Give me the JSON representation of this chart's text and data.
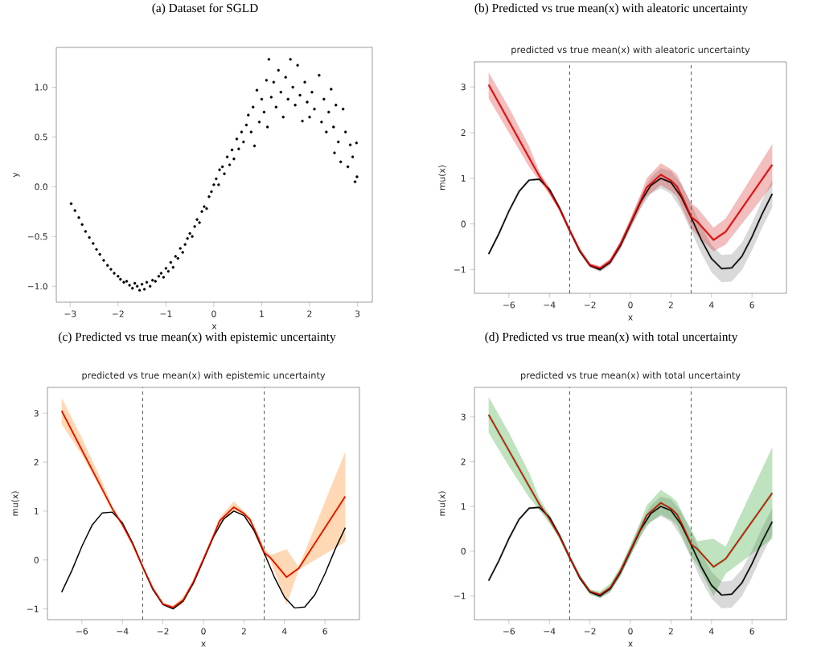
{
  "chart_data": [
    {
      "type": "scatter",
      "title": "(a) Dataset for SGLD",
      "xlabel": "x",
      "ylabel": "y",
      "marker": "circle",
      "xlim": [
        -3.29,
        3.31
      ],
      "ylim": [
        -1.16,
        1.4
      ],
      "xticks": [
        {
          "value": -3,
          "label": "−3"
        },
        {
          "value": -2,
          "label": "−2"
        },
        {
          "value": -1,
          "label": "−1"
        },
        0,
        1,
        2,
        3
      ],
      "yticks": [
        {
          "value": -1,
          "label": "−1.0"
        },
        {
          "value": -0.5,
          "label": "−0.5"
        },
        {
          "value": 0,
          "label": "0.0"
        },
        0.5,
        {
          "value": 1,
          "label": "1.0"
        }
      ],
      "series": [
        {
          "color": "#000000",
          "x": [
            -2.98,
            -2.9,
            -2.82,
            -2.75,
            -2.68,
            -2.6,
            -2.52,
            -2.45,
            -2.38,
            -2.3,
            -2.22,
            -2.15,
            -2.08,
            -2.0,
            -1.95,
            -1.88,
            -1.82,
            -1.76,
            -1.7,
            -1.65,
            -1.6,
            -1.55,
            -1.5,
            -1.45,
            -1.4,
            -1.33,
            -1.28,
            -1.22,
            -1.15,
            -1.1,
            -1.05,
            -1.0,
            -0.95,
            -0.9,
            -0.85,
            -0.8,
            -0.75,
            -0.7,
            -0.65,
            -0.6,
            -0.55,
            -0.5,
            -0.45,
            -0.4,
            -0.35,
            -0.3,
            -0.25,
            -0.2,
            -0.15,
            -0.1,
            -0.05,
            0.0,
            0.05,
            0.1,
            0.12,
            0.18,
            0.22,
            0.28,
            0.33,
            0.38,
            0.42,
            0.48,
            0.52,
            0.58,
            0.62,
            0.68,
            0.72,
            0.78,
            0.82,
            0.85,
            0.9,
            0.95,
            1.0,
            1.05,
            1.1,
            1.12,
            1.15,
            1.2,
            1.25,
            1.3,
            1.35,
            1.4,
            1.45,
            1.5,
            1.55,
            1.6,
            1.65,
            1.7,
            1.75,
            1.8,
            1.85,
            1.9,
            1.95,
            2.0,
            2.05,
            2.1,
            2.2,
            2.25,
            2.3,
            2.35,
            2.4,
            2.45,
            2.5,
            2.52,
            2.55,
            2.6,
            2.65,
            2.7,
            2.75,
            2.8,
            2.85,
            2.9,
            2.95,
            2.98,
            2.99
          ],
          "values": [
            -0.17,
            -0.24,
            -0.31,
            -0.38,
            -0.45,
            -0.51,
            -0.57,
            -0.63,
            -0.68,
            -0.74,
            -0.79,
            -0.83,
            -0.87,
            -0.9,
            -0.93,
            -0.96,
            -0.95,
            -0.99,
            -1.02,
            -0.97,
            -1.0,
            -1.04,
            -0.98,
            -1.03,
            -0.96,
            -1.0,
            -0.94,
            -0.95,
            -0.9,
            -0.87,
            -0.91,
            -0.82,
            -0.85,
            -0.76,
            -0.81,
            -0.7,
            -0.72,
            -0.62,
            -0.66,
            -0.58,
            -0.52,
            -0.47,
            -0.5,
            -0.4,
            -0.33,
            -0.36,
            -0.25,
            -0.2,
            -0.22,
            -0.1,
            -0.05,
            0.02,
            0.08,
            0.02,
            0.17,
            0.2,
            0.13,
            0.3,
            0.22,
            0.37,
            0.28,
            0.48,
            0.38,
            0.55,
            0.45,
            0.62,
            0.72,
            0.55,
            0.8,
            0.41,
            0.97,
            0.65,
            0.88,
            0.75,
            1.07,
            0.6,
            1.28,
            0.9,
            1.05,
            0.8,
            1.17,
            0.95,
            0.7,
            1.1,
            0.88,
            1.28,
            1.0,
            0.82,
            1.22,
            0.92,
            0.66,
            1.05,
            0.85,
            0.7,
            0.95,
            0.78,
            1.12,
            0.65,
            0.88,
            0.55,
            0.75,
            0.98,
            0.6,
            0.34,
            0.82,
            0.45,
            0.25,
            0.78,
            0.55,
            0.2,
            0.42,
            0.3,
            0.05,
            0.44,
            0.1
          ]
        }
      ]
    },
    {
      "type": "line",
      "title": "(b) Predicted vs true mean(x) with aleatoric uncertainty",
      "subtitle": "predicted vs true mean(x) with aleatoric uncertainty",
      "xlabel": "x",
      "ylabel": "mu(x)",
      "xlim": [
        -7.7,
        7.7
      ],
      "ylim": [
        -1.52,
        3.55
      ],
      "xticks": [
        {
          "value": -6,
          "label": "−6"
        },
        {
          "value": -4,
          "label": "−4"
        },
        {
          "value": -2,
          "label": "−2"
        },
        0,
        2,
        4,
        6
      ],
      "yticks": [
        {
          "value": -1,
          "label": "−1"
        },
        0,
        1,
        2,
        3
      ],
      "ref_lines": [
        {
          "axis": "x",
          "value": -3,
          "color": "#555555",
          "line_style": "dashed"
        },
        {
          "axis": "x",
          "value": 3,
          "color": "#555555",
          "line_style": "dashed"
        }
      ],
      "series": [
        {
          "type": "line",
          "color": "#808080",
          "x": [
            -7,
            -6.5,
            -6,
            -5.5,
            -5,
            -4.5,
            -4,
            -3.5,
            -3,
            -2.5,
            -2,
            -1.5,
            -1,
            -0.5,
            0,
            0.5,
            1,
            1.5,
            2,
            2.5,
            3,
            3.5,
            4,
            4.5,
            5,
            5.5,
            6,
            6.5,
            7
          ],
          "values": [
            -0.66,
            -0.22,
            0.28,
            0.71,
            0.96,
            0.98,
            0.76,
            0.35,
            -0.14,
            -0.6,
            -0.91,
            -1.0,
            -0.84,
            -0.48,
            0,
            0.48,
            0.84,
            1.0,
            0.91,
            0.6,
            0.14,
            -0.35,
            -0.76,
            -0.98,
            -0.96,
            -0.71,
            -0.28,
            0.22,
            0.66
          ],
          "lower": [
            -0.68,
            -0.24,
            0.26,
            0.69,
            0.94,
            0.96,
            0.74,
            0.33,
            -0.16,
            -0.63,
            -0.95,
            -1.05,
            -0.91,
            -0.57,
            -0.11,
            0.34,
            0.66,
            0.78,
            0.66,
            0.32,
            -0.16,
            -0.65,
            -1.06,
            -1.28,
            -1.26,
            -1.01,
            -0.58,
            -0.08,
            0.36
          ],
          "upper": [
            -0.64,
            -0.2,
            0.3,
            0.73,
            0.98,
            1.0,
            0.78,
            0.37,
            -0.12,
            -0.57,
            -0.87,
            -0.95,
            -0.77,
            -0.39,
            0.11,
            0.62,
            1.02,
            1.22,
            1.16,
            0.88,
            0.44,
            -0.05,
            -0.46,
            -0.68,
            -0.66,
            -0.41,
            0.02,
            0.52,
            0.96
          ]
        },
        {
          "type": "line",
          "color": "#d62728",
          "x": [
            -7,
            -6,
            -5,
            -4.5,
            -4,
            -3.5,
            -3,
            -2.5,
            -2,
            -1.5,
            -1,
            -0.5,
            0,
            0.5,
            0.8,
            1.5,
            2,
            2.3,
            2.6,
            3,
            3.3,
            4.1,
            4.7,
            7
          ],
          "values": [
            3.05,
            2.25,
            1.45,
            1.05,
            0.72,
            0.33,
            -0.14,
            -0.58,
            -0.9,
            -0.97,
            -0.82,
            -0.45,
            0.02,
            0.5,
            0.8,
            1.08,
            0.95,
            0.82,
            0.55,
            0.15,
            0.05,
            -0.35,
            -0.17,
            1.3
          ],
          "lower": [
            2.75,
            2.0,
            1.25,
            0.95,
            0.65,
            0.3,
            -0.16,
            -0.6,
            -0.95,
            -1.02,
            -0.88,
            -0.53,
            -0.08,
            0.35,
            0.6,
            0.85,
            0.72,
            0.6,
            0.3,
            -0.1,
            -0.25,
            -0.6,
            -0.45,
            0.85
          ],
          "upper": [
            3.32,
            2.55,
            1.7,
            1.15,
            0.8,
            0.37,
            -0.12,
            -0.55,
            -0.86,
            -0.92,
            -0.76,
            -0.38,
            0.12,
            0.65,
            1.0,
            1.33,
            1.2,
            1.08,
            0.8,
            0.45,
            0.35,
            -0.08,
            0.12,
            1.75
          ]
        },
        {
          "color": "#000000",
          "x": [
            -7,
            -6.5,
            -6,
            -5.5,
            -5,
            -4.5,
            -4,
            -3.5,
            -3,
            -2.5,
            -2,
            -1.5,
            -1,
            -0.5,
            0,
            0.5,
            1,
            1.5,
            2,
            2.5,
            3,
            3.5,
            4,
            4.5,
            5,
            5.5,
            6,
            6.5,
            7
          ],
          "values": [
            -0.66,
            -0.22,
            0.28,
            0.71,
            0.96,
            0.98,
            0.76,
            0.35,
            -0.14,
            -0.6,
            -0.91,
            -1.0,
            -0.84,
            -0.48,
            0,
            0.48,
            0.84,
            1.0,
            0.91,
            0.6,
            0.14,
            -0.35,
            -0.76,
            -0.98,
            -0.96,
            -0.71,
            -0.28,
            0.22,
            0.66
          ]
        },
        {
          "color": "#dd0000",
          "x": [
            -7,
            -6,
            -5,
            -4.5,
            -4,
            -3.5,
            -3,
            -2.5,
            -2,
            -1.5,
            -1,
            -0.5,
            0,
            0.5,
            0.8,
            1.5,
            2,
            2.3,
            2.6,
            3,
            3.3,
            4.1,
            4.7,
            7
          ],
          "values": [
            3.05,
            2.25,
            1.45,
            1.05,
            0.72,
            0.33,
            -0.14,
            -0.58,
            -0.9,
            -0.97,
            -0.82,
            -0.45,
            0.02,
            0.5,
            0.8,
            1.08,
            0.95,
            0.82,
            0.55,
            0.15,
            0.05,
            -0.35,
            -0.17,
            1.3
          ]
        }
      ]
    },
    {
      "type": "line",
      "title": "(c) Predicted vs true mean(x) with epistemic uncertainty",
      "subtitle": "predicted vs true mean(x) with epistemic uncertainty",
      "xlabel": "x",
      "ylabel": "mu(x)",
      "xlim": [
        -7.7,
        7.7
      ],
      "ylim": [
        -1.22,
        3.53
      ],
      "xticks": [
        {
          "value": -6,
          "label": "−6"
        },
        {
          "value": -4,
          "label": "−4"
        },
        {
          "value": -2,
          "label": "−2"
        },
        0,
        2,
        4,
        6
      ],
      "yticks": [
        {
          "value": -1,
          "label": "−1"
        },
        0,
        1,
        2,
        3
      ],
      "ref_lines": [
        {
          "axis": "x",
          "value": -3,
          "color": "#555555",
          "line_style": "dashed"
        },
        {
          "axis": "x",
          "value": 3,
          "color": "#555555",
          "line_style": "dashed"
        }
      ],
      "series": [
        {
          "type": "line",
          "color": "#ff7f0e",
          "x": [
            -7,
            -6,
            -5,
            -4.5,
            -4,
            -3.5,
            -3,
            -2.5,
            -2,
            -1.5,
            -1,
            -0.5,
            0,
            0.5,
            0.8,
            1.5,
            2,
            2.3,
            2.6,
            3,
            3.3,
            4.1,
            4.7,
            7
          ],
          "values": [
            3.05,
            2.25,
            1.45,
            1.05,
            0.72,
            0.33,
            -0.14,
            -0.58,
            -0.9,
            -0.97,
            -0.82,
            -0.45,
            0.02,
            0.5,
            0.8,
            1.08,
            0.95,
            0.82,
            0.55,
            0.15,
            0.05,
            -0.35,
            -0.17,
            1.3
          ],
          "lower": [
            2.78,
            2.15,
            1.4,
            1.0,
            0.7,
            0.32,
            -0.15,
            -0.6,
            -0.93,
            -1.0,
            -0.9,
            -0.47,
            -0.02,
            0.47,
            0.72,
            1.0,
            0.9,
            0.78,
            0.45,
            0.1,
            0.0,
            -0.92,
            -0.2,
            0.37
          ],
          "upper": [
            3.32,
            2.5,
            1.6,
            1.1,
            0.75,
            0.35,
            -0.13,
            -0.56,
            -0.88,
            -0.93,
            -0.76,
            -0.43,
            0.06,
            0.53,
            0.87,
            1.2,
            1.0,
            0.87,
            0.6,
            0.25,
            0.1,
            0.22,
            -0.14,
            2.22
          ]
        },
        {
          "color": "#000000",
          "x": [
            -7,
            -6.5,
            -6,
            -5.5,
            -5,
            -4.5,
            -4,
            -3.5,
            -3,
            -2.5,
            -2,
            -1.5,
            -1,
            -0.5,
            0,
            0.5,
            1,
            1.5,
            2,
            2.5,
            3,
            3.5,
            4,
            4.5,
            5,
            5.5,
            6,
            6.5,
            7
          ],
          "values": [
            -0.66,
            -0.22,
            0.28,
            0.71,
            0.96,
            0.98,
            0.76,
            0.35,
            -0.14,
            -0.6,
            -0.91,
            -1.0,
            -0.84,
            -0.48,
            0,
            0.48,
            0.84,
            1.0,
            0.91,
            0.6,
            0.14,
            -0.35,
            -0.76,
            -0.98,
            -0.96,
            -0.71,
            -0.28,
            0.22,
            0.66
          ]
        },
        {
          "color": "#dd0000",
          "x": [
            -7,
            -6,
            -5,
            -4.5,
            -4,
            -3.5,
            -3,
            -2.5,
            -2,
            -1.5,
            -1,
            -0.5,
            0,
            0.5,
            0.8,
            1.5,
            2,
            2.3,
            2.6,
            3,
            3.3,
            4.1,
            4.7,
            7
          ],
          "values": [
            3.05,
            2.25,
            1.45,
            1.05,
            0.72,
            0.33,
            -0.14,
            -0.58,
            -0.9,
            -0.97,
            -0.82,
            -0.45,
            0.02,
            0.5,
            0.8,
            1.08,
            0.95,
            0.82,
            0.55,
            0.15,
            0.05,
            -0.35,
            -0.17,
            1.3
          ]
        }
      ]
    },
    {
      "type": "line",
      "title": "(d) Predicted vs true mean(x) with total uncertainty",
      "subtitle": "predicted vs true mean(x) with total uncertainty",
      "xlabel": "x",
      "ylabel": "mu(x)",
      "xlim": [
        -7.7,
        7.7
      ],
      "ylim": [
        -1.53,
        3.66
      ],
      "xticks": [
        {
          "value": -6,
          "label": "−6"
        },
        {
          "value": -4,
          "label": "−4"
        },
        {
          "value": -2,
          "label": "−2"
        },
        0,
        2,
        4,
        6
      ],
      "yticks": [
        {
          "value": -1,
          "label": "−1"
        },
        0,
        1,
        2,
        3
      ],
      "ref_lines": [
        {
          "axis": "x",
          "value": -3,
          "color": "#555555",
          "line_style": "dashed"
        },
        {
          "axis": "x",
          "value": 3,
          "color": "#555555",
          "line_style": "dashed"
        }
      ],
      "series": [
        {
          "type": "line",
          "color": "#808080",
          "x": [
            -7,
            -6.5,
            -6,
            -5.5,
            -5,
            -4.5,
            -4,
            -3.5,
            -3,
            -2.5,
            -2,
            -1.5,
            -1,
            -0.5,
            0,
            0.5,
            1,
            1.5,
            2,
            2.5,
            3,
            3.5,
            4,
            4.5,
            5,
            5.5,
            6,
            6.5,
            7
          ],
          "values": [
            -0.66,
            -0.22,
            0.28,
            0.71,
            0.96,
            0.98,
            0.76,
            0.35,
            -0.14,
            -0.6,
            -0.91,
            -1.0,
            -0.84,
            -0.48,
            0,
            0.48,
            0.84,
            1.0,
            0.91,
            0.6,
            0.14,
            -0.35,
            -0.76,
            -0.98,
            -0.96,
            -0.71,
            -0.28,
            0.22,
            0.66
          ],
          "lower": [
            -0.68,
            -0.24,
            0.26,
            0.69,
            0.94,
            0.96,
            0.74,
            0.33,
            -0.16,
            -0.63,
            -0.95,
            -1.05,
            -0.91,
            -0.57,
            -0.11,
            0.34,
            0.66,
            0.78,
            0.66,
            0.32,
            -0.16,
            -0.65,
            -1.06,
            -1.28,
            -1.26,
            -1.01,
            -0.58,
            -0.08,
            0.36
          ],
          "upper": [
            -0.64,
            -0.2,
            0.3,
            0.73,
            0.98,
            1.0,
            0.78,
            0.37,
            -0.12,
            -0.57,
            -0.87,
            -0.95,
            -0.77,
            -0.39,
            0.11,
            0.62,
            1.02,
            1.22,
            1.16,
            0.88,
            0.44,
            -0.05,
            -0.46,
            -0.68,
            -0.66,
            -0.41,
            0.02,
            0.52,
            0.96
          ]
        },
        {
          "type": "line",
          "color": "#2ca02c",
          "x": [
            -7,
            -6,
            -5,
            -4.5,
            -4,
            -3.5,
            -3,
            -2.5,
            -2,
            -1.5,
            -1,
            -0.5,
            0,
            0.5,
            0.8,
            1.5,
            2,
            2.3,
            2.6,
            3,
            3.3,
            4.1,
            4.7,
            7
          ],
          "values": [
            3.05,
            2.25,
            1.45,
            1.05,
            0.72,
            0.33,
            -0.14,
            -0.58,
            -0.9,
            -0.97,
            -0.82,
            -0.45,
            0.02,
            0.5,
            0.8,
            1.08,
            0.95,
            0.82,
            0.55,
            0.15,
            0.05,
            -0.35,
            -0.17,
            1.3
          ],
          "lower": [
            2.65,
            1.9,
            1.2,
            0.92,
            0.62,
            0.28,
            -0.18,
            -0.63,
            -0.97,
            -1.05,
            -0.92,
            -0.55,
            -0.1,
            0.33,
            0.58,
            0.82,
            0.7,
            0.58,
            0.28,
            -0.12,
            -0.3,
            -1.0,
            -0.5,
            0.28
          ],
          "upper": [
            3.45,
            2.65,
            1.75,
            1.18,
            0.82,
            0.4,
            -0.1,
            -0.53,
            -0.85,
            -0.9,
            -0.72,
            -0.35,
            0.14,
            0.67,
            1.02,
            1.37,
            1.22,
            1.1,
            0.82,
            0.48,
            0.22,
            0.28,
            0.1,
            2.32
          ]
        },
        {
          "color": "#000000",
          "x": [
            -7,
            -6.5,
            -6,
            -5.5,
            -5,
            -4.5,
            -4,
            -3.5,
            -3,
            -2.5,
            -2,
            -1.5,
            -1,
            -0.5,
            0,
            0.5,
            1,
            1.5,
            2,
            2.5,
            3,
            3.5,
            4,
            4.5,
            5,
            5.5,
            6,
            6.5,
            7
          ],
          "values": [
            -0.66,
            -0.22,
            0.28,
            0.71,
            0.96,
            0.98,
            0.76,
            0.35,
            -0.14,
            -0.6,
            -0.91,
            -1.0,
            -0.84,
            -0.48,
            0,
            0.48,
            0.84,
            1.0,
            0.91,
            0.6,
            0.14,
            -0.35,
            -0.76,
            -0.98,
            -0.96,
            -0.71,
            -0.28,
            0.22,
            0.66
          ]
        },
        {
          "color": "#dd0000",
          "x": [
            -7,
            -6,
            -5,
            -4.5,
            -4,
            -3.5,
            -3,
            -2.5,
            -2,
            -1.5,
            -1,
            -0.5,
            0,
            0.5,
            0.8,
            1.5,
            2,
            2.3,
            2.6,
            3,
            3.3,
            4.1,
            4.7,
            7
          ],
          "values": [
            3.05,
            2.25,
            1.45,
            1.05,
            0.72,
            0.33,
            -0.14,
            -0.58,
            -0.9,
            -0.97,
            -0.82,
            -0.45,
            0.02,
            0.5,
            0.8,
            1.08,
            0.95,
            0.82,
            0.55,
            0.15,
            0.05,
            -0.35,
            -0.17,
            1.3
          ]
        }
      ]
    }
  ]
}
